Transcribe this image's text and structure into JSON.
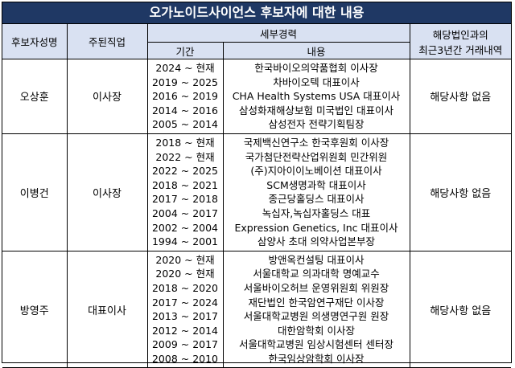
{
  "title": "오가노이드사이언스 후보자에 대한 내용",
  "headers": {
    "name": "후보자성명",
    "position": "주된직업",
    "career": "세부경력",
    "period": "기간",
    "content": "내용",
    "transactions_line1": "해당법인과의",
    "transactions_line2": "최근3년간 거래내역"
  },
  "candidates": [
    {
      "name": "오상훈",
      "position": "이사장",
      "transactions": "해당사항 없음",
      "careers": [
        {
          "period": "2024 ~ 현재",
          "content": "한국바이오의약품협회 이사장"
        },
        {
          "period": "2019 ~ 2025",
          "content": "차바이오텍 대표이사"
        },
        {
          "period": "2016 ~ 2019",
          "content": "CHA Health Systems USA 대표이사"
        },
        {
          "period": "2014 ~ 2016",
          "content": "삼성화재해상보험 미국법인 대표이사"
        },
        {
          "period": "2005 ~ 2014",
          "content": "삼성전자 전략기획팀장"
        }
      ]
    },
    {
      "name": "이병건",
      "position": "이사장",
      "transactions": "해당사항 없음",
      "careers": [
        {
          "period": "2018 ~ 현재",
          "content": "국제백신연구소 한국후원회 이사장"
        },
        {
          "period": "2022 ~ 현재",
          "content": "국가첨단전략산업위원회 민간위원"
        },
        {
          "period": "2022 ~ 2025",
          "content": "(주)지아이이노베이션 대표이사"
        },
        {
          "period": "2018 ~ 2021",
          "content": "SCM생명과학 대표이사"
        },
        {
          "period": "2017 ~ 2018",
          "content": "종근당홀딩스 대표이사"
        },
        {
          "period": "2004 ~ 2017",
          "content": "녹십자,녹십자홀딩스 대표"
        },
        {
          "period": "2002 ~ 2004",
          "content": "Expression Genetics, Inc 대표이사"
        },
        {
          "period": "1994 ~ 2001",
          "content": "삼양사 초대 의약사업본부장"
        }
      ]
    },
    {
      "name": "방영주",
      "position": "대표이사",
      "transactions": "해당사항 없음",
      "careers": [
        {
          "period": "2020 ~ 현재",
          "content": "방앤옥컨설팅 대표이사"
        },
        {
          "period": "2020 ~ 현재",
          "content": "서울대학교 의과대학 명예교수"
        },
        {
          "period": "2018 ~ 2020",
          "content": "서울바이오허브 운영위원회 위원장"
        },
        {
          "period": "2017 ~ 2024",
          "content": "재단법인 한국암연구재단 이사장"
        },
        {
          "period": "2013 ~ 2017",
          "content": "서울대학교병원 의생명연구원 원장"
        },
        {
          "period": "2012 ~ 2014",
          "content": "대한암학회 이사장"
        },
        {
          "period": "2009 ~ 2017",
          "content": "서울대학교병원 임상시험센터 센터장"
        },
        {
          "period": "2008 ~ 2010",
          "content": "한국임상암학회 이사장"
        }
      ]
    }
  ]
}
